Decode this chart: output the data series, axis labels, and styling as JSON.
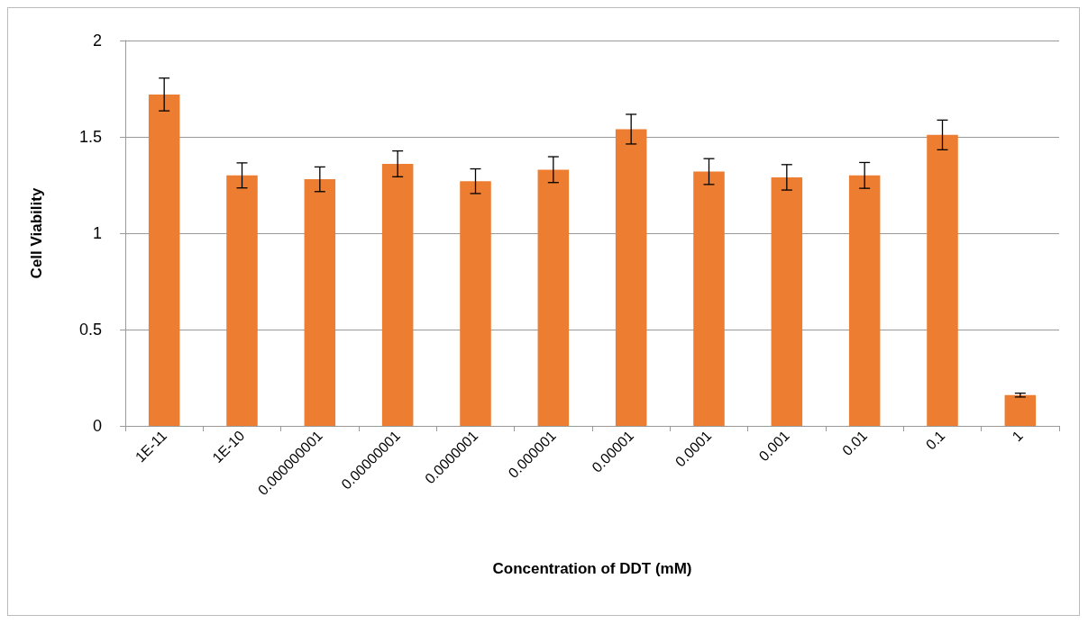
{
  "chart_data": {
    "type": "bar",
    "xlabel": "Concentration of DDT (mM)",
    "ylabel": "Cell Viability",
    "categories": [
      "1E-11",
      "1E-10",
      "0.000000001",
      "0.00000001",
      "0.0000001",
      "0.000001",
      "0.00001",
      "0.0001",
      "0.001",
      "0.01",
      "0.1",
      "1"
    ],
    "values": [
      1.72,
      1.3,
      1.28,
      1.36,
      1.27,
      1.33,
      1.54,
      1.32,
      1.29,
      1.3,
      1.51,
      0.16
    ],
    "errors": [
      0.085,
      0.065,
      0.064,
      0.067,
      0.064,
      0.067,
      0.077,
      0.067,
      0.066,
      0.067,
      0.077,
      0.01
    ],
    "color": "#ed7d31",
    "ylim": [
      0,
      2
    ],
    "yticks": [
      0,
      0.5,
      1,
      1.5,
      2
    ],
    "grid": "y"
  }
}
